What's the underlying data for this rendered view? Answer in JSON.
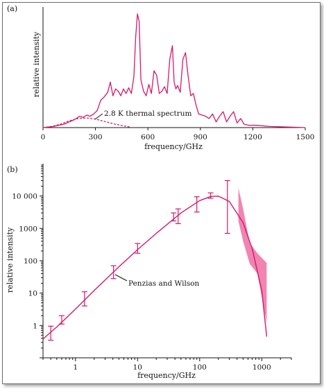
{
  "chart_data": [
    {
      "type": "line",
      "panel_label": "(a)",
      "xlabel": "frequency/GHz",
      "ylabel": "relative intensity",
      "xlim": [
        0,
        1500
      ],
      "ylim": [
        0,
        1
      ],
      "xticks": [
        0,
        300,
        600,
        900,
        1200,
        1500
      ],
      "annotation": "2.8 K thermal spectrum",
      "color": "#d6176a",
      "series": [
        {
          "style": "solid",
          "x": [
            0,
            60,
            120,
            180,
            210,
            230,
            250,
            270,
            290,
            310,
            330,
            350,
            370,
            385,
            400,
            415,
            430,
            445,
            460,
            475,
            490,
            505,
            520,
            530,
            540,
            550,
            560,
            575,
            590,
            605,
            620,
            635,
            650,
            665,
            680,
            695,
            710,
            725,
            740,
            750,
            760,
            770,
            785,
            800,
            815,
            830,
            845,
            860,
            875,
            890,
            910,
            930,
            950,
            970,
            990,
            1010,
            1030,
            1050,
            1070,
            1090,
            1110,
            1130,
            1150,
            1180,
            1220,
            1300,
            1400,
            1500
          ],
          "y": [
            0.0,
            0.01,
            0.03,
            0.07,
            0.1,
            0.09,
            0.11,
            0.1,
            0.12,
            0.15,
            0.24,
            0.27,
            0.31,
            0.4,
            0.28,
            0.34,
            0.32,
            0.28,
            0.34,
            0.3,
            0.35,
            0.3,
            0.45,
            0.8,
            1.0,
            0.93,
            0.42,
            0.32,
            0.28,
            0.38,
            0.3,
            0.5,
            0.46,
            0.3,
            0.32,
            0.36,
            0.3,
            0.6,
            0.72,
            0.4,
            0.34,
            0.37,
            0.31,
            0.6,
            0.66,
            0.45,
            0.28,
            0.3,
            0.2,
            0.12,
            0.11,
            0.1,
            0.08,
            0.12,
            0.05,
            0.1,
            0.14,
            0.05,
            0.1,
            0.14,
            0.04,
            0.08,
            0.03,
            0.02,
            0.02,
            0.01,
            0.005,
            0.0
          ]
        },
        {
          "name": "2.8 K thermal spectrum",
          "style": "dashed",
          "x": [
            0,
            50,
            100,
            150,
            200,
            250,
            300,
            350,
            400,
            450,
            500
          ],
          "y": [
            0.0,
            0.01,
            0.03,
            0.06,
            0.08,
            0.085,
            0.075,
            0.055,
            0.035,
            0.018,
            0.005
          ]
        }
      ]
    },
    {
      "type": "line",
      "panel_label": "(b)",
      "xlabel": "frequency/GHz",
      "ylabel": "relative intensity",
      "xscale": "log",
      "yscale": "log",
      "xlim": [
        0.3,
        3000
      ],
      "ylim": [
        0.1,
        100000
      ],
      "xticks": [
        1,
        10,
        100,
        1000
      ],
      "yticks": [
        1,
        10,
        100,
        1000,
        10000
      ],
      "ytick_labels": [
        "1",
        "10",
        "100",
        "1000",
        "10 000"
      ],
      "annotation": "Penzias and Wilson",
      "color": "#d6176a",
      "band_color": "#ee6fa3",
      "curve": {
        "x": [
          0.3,
          0.5,
          1,
          2,
          5,
          10,
          20,
          50,
          100,
          150,
          200,
          300,
          500,
          700,
          1000,
          1200
        ],
        "y": [
          0.38,
          0.9,
          3.2,
          12,
          65,
          220,
          700,
          3000,
          7200,
          9700,
          9900,
          6800,
          1500,
          240,
          12,
          0.45
        ]
      },
      "error_bars": [
        {
          "x": 0.4,
          "y": 0.6,
          "low": 0.35,
          "high": 0.95
        },
        {
          "x": 0.6,
          "y": 1.5,
          "low": 1.1,
          "high": 2.0
        },
        {
          "x": 1.4,
          "y": 6.5,
          "low": 4,
          "high": 11
        },
        {
          "x": 4.1,
          "y": 45,
          "low": 28,
          "high": 70
        },
        {
          "x": 10,
          "y": 240,
          "low": 170,
          "high": 340
        },
        {
          "x": 38,
          "y": 2300,
          "low": 1700,
          "high": 3000
        },
        {
          "x": 45,
          "y": 2700,
          "low": 1400,
          "high": 4000
        },
        {
          "x": 90,
          "y": 6000,
          "low": 3200,
          "high": 9500
        },
        {
          "x": 150,
          "y": 10500,
          "low": 8500,
          "high": 12500
        },
        {
          "x": 280,
          "y": 10000,
          "low": 700,
          "high": 30000
        }
      ],
      "band": {
        "x": [
          420,
          500,
          640,
          850,
          1200
        ],
        "low": [
          1700,
          400,
          80,
          40,
          1.2
        ],
        "high": [
          18000,
          4000,
          350,
          170,
          85
        ]
      }
    }
  ]
}
